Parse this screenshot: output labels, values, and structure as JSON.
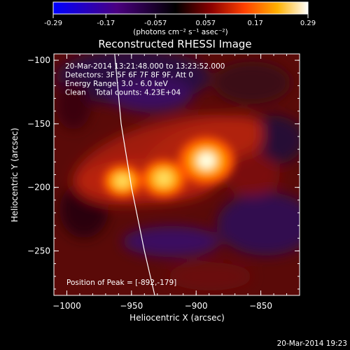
{
  "colorbar": {
    "ticks": [
      "-0.29",
      "-0.17",
      "-0.057",
      "0.057",
      "0.17",
      "0.29"
    ],
    "tick_values": [
      -0.29,
      -0.17,
      -0.057,
      0.057,
      0.17,
      0.29
    ],
    "range": [
      -0.29,
      0.29
    ],
    "unit_label": "(photons cm⁻² s⁻¹ asec⁻²)",
    "colors": [
      "#0000ff",
      "#4a0080",
      "#000000",
      "#8b0000",
      "#ff4000",
      "#ffb000",
      "#ffffff"
    ]
  },
  "chart_data": {
    "type": "heatmap",
    "title": "Reconstructed RHESSI Image",
    "xlabel": "Heliocentric X (arcsec)",
    "ylabel": "Heliocentric Y (arcsec)",
    "xlim": [
      -1010,
      -820
    ],
    "ylim": [
      -285,
      -95
    ],
    "x_ticks": [
      -1000,
      -950,
      -900,
      -850
    ],
    "y_ticks": [
      -250,
      -200,
      -150,
      -100
    ],
    "x_tick_labels": [
      "−1000",
      "−950",
      "−900",
      "−850"
    ],
    "y_tick_labels": [
      "−250",
      "−200",
      "−150",
      "−100"
    ],
    "sources": [
      {
        "x": -957,
        "y": -195,
        "intensity": 0.17
      },
      {
        "x": -925,
        "y": -193,
        "intensity": 0.21
      },
      {
        "x": -892,
        "y": -179,
        "intensity": 0.29
      }
    ],
    "limb_curve": [
      [
        -963,
        -95
      ],
      [
        -958,
        -150
      ],
      [
        -950,
        -200
      ],
      [
        -940,
        -250
      ],
      [
        -932,
        -285
      ]
    ],
    "annotations": [
      "20-Mar-2014 13:21:48.000 to 13:23:52.000",
      "Detectors: 3F 5F 6F 7F 8F 9F, Att 0",
      "Energy Range: 3.0 - 6.0 keV",
      "Clean    Total counts: 4.23E+04"
    ],
    "peak_label": "Position of Peak = [-892,-179]",
    "peak": [
      -892,
      -179
    ]
  },
  "footer": {
    "timestamp": "20-Mar-2014 19:23"
  }
}
